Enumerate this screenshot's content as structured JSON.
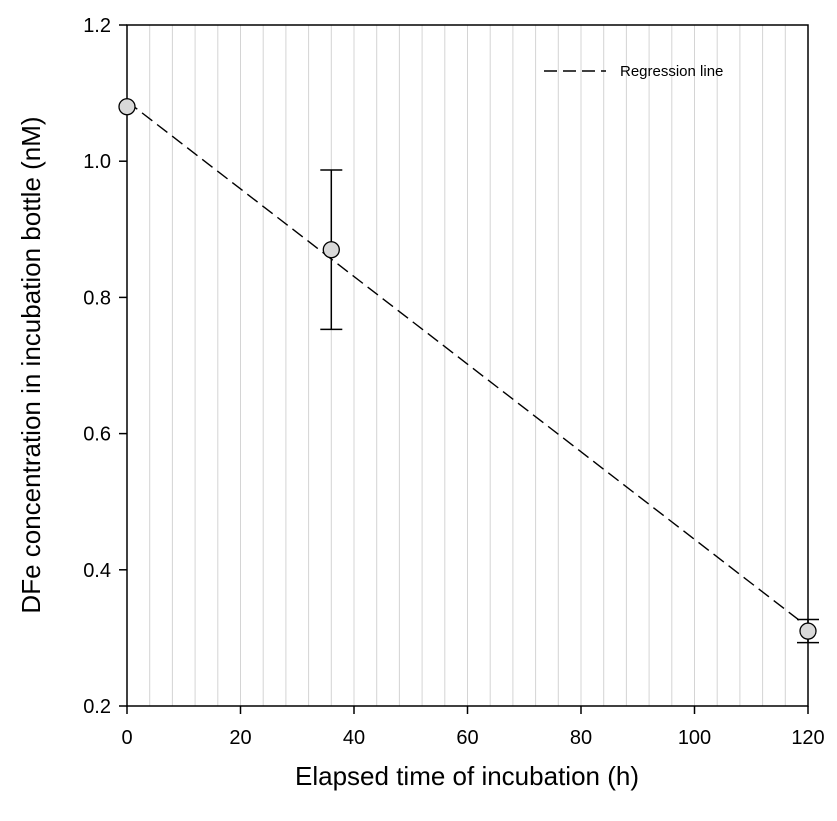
{
  "chart_data": {
    "type": "scatter",
    "xlabel": "Elapsed time of incubation (h)",
    "ylabel": "DFe concentration in incubation bottle (nM)",
    "xlim": [
      0,
      120
    ],
    "ylim": [
      0.2,
      1.2
    ],
    "xticks": [
      "0",
      "20",
      "40",
      "60",
      "80",
      "100",
      "120"
    ],
    "yticks": [
      "0.2",
      "0.4",
      "0.6",
      "0.8",
      "1.0",
      "1.2"
    ],
    "grid": "vertical",
    "points": [
      {
        "x": 0,
        "y": 1.08,
        "err": 0
      },
      {
        "x": 36,
        "y": 0.87,
        "err": 0.117
      },
      {
        "x": 120,
        "y": 0.31,
        "err": 0.017
      }
    ],
    "regression": {
      "x": [
        0,
        120
      ],
      "y": [
        1.088,
        0.316
      ]
    },
    "legend": {
      "label": "Regression line",
      "position": "top-right"
    },
    "colors": {
      "marker_fill": "#d9d9d9",
      "line": "#000000",
      "grid": "#d4d4d4"
    }
  }
}
